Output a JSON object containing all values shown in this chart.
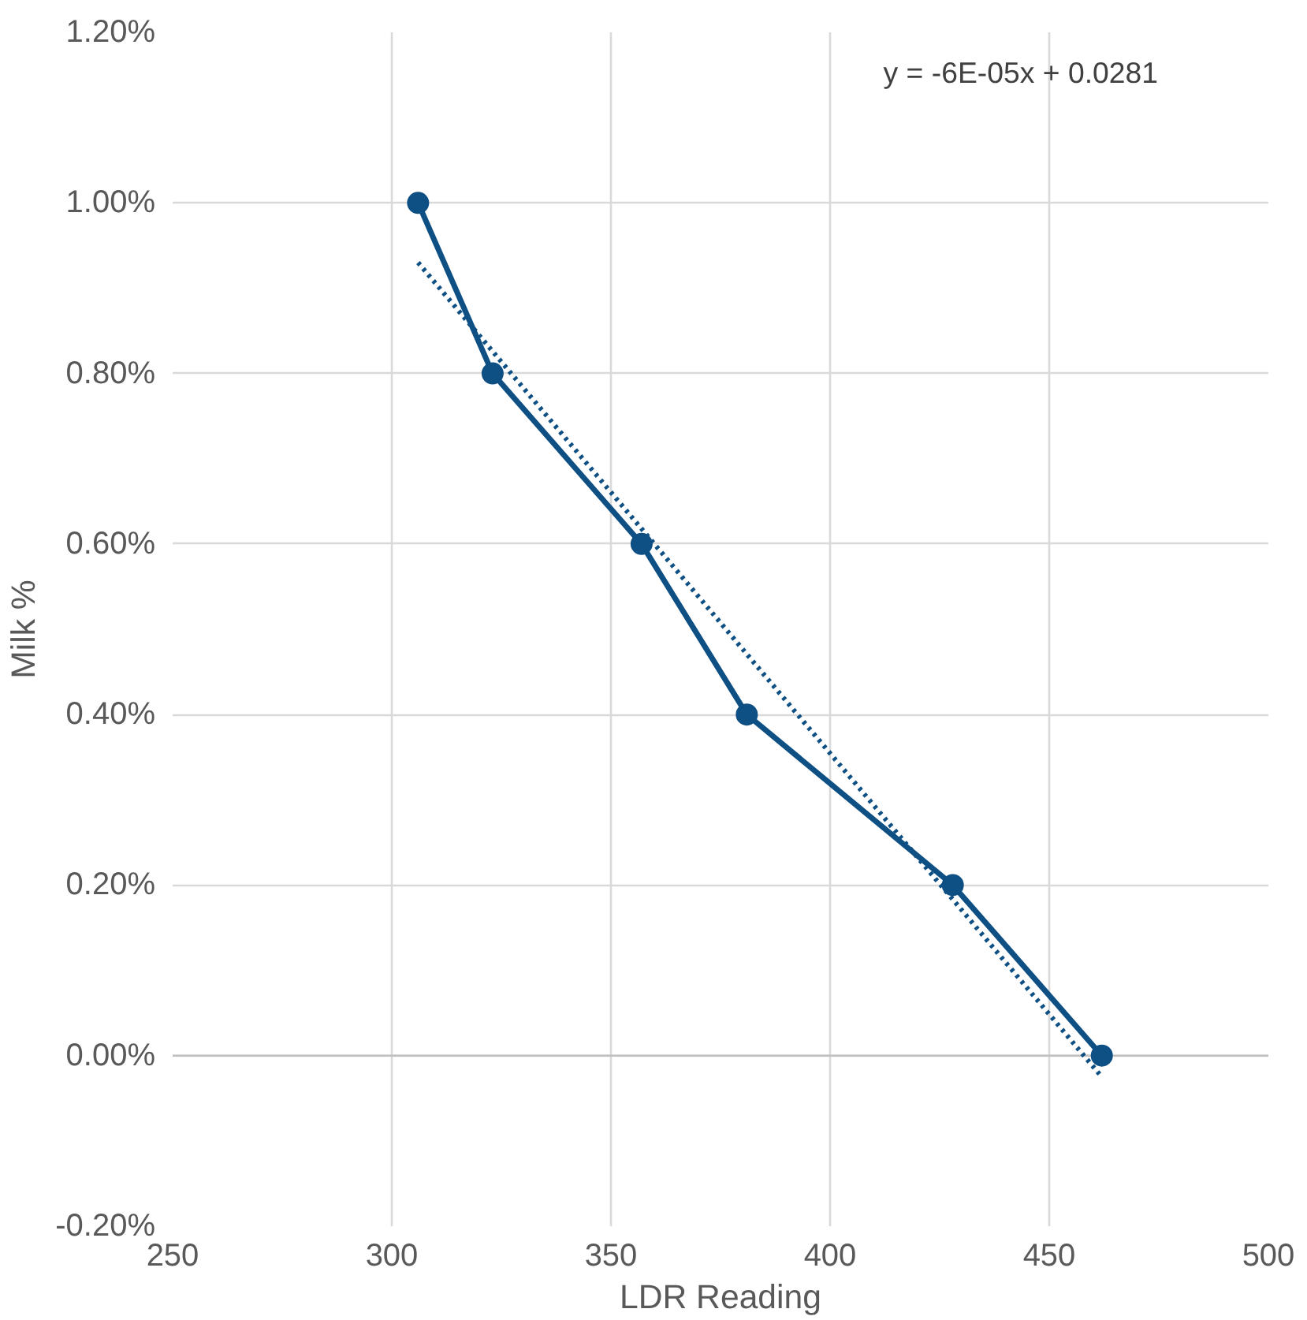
{
  "chart_data": {
    "type": "line",
    "xlabel": "LDR Reading",
    "ylabel": "Milk %",
    "xlim": [
      250,
      500
    ],
    "xticks": [
      250,
      300,
      350,
      400,
      450,
      500
    ],
    "ylim": [
      -0.2,
      1.2
    ],
    "yticks": [
      {
        "value": -0.2,
        "label": "-0.20%"
      },
      {
        "value": 0,
        "label": "0.00%"
      },
      {
        "value": 0.2,
        "label": "0.20%"
      },
      {
        "value": 0.4,
        "label": "0.40%"
      },
      {
        "value": 0.6,
        "label": "0.60%"
      },
      {
        "value": 0.8,
        "label": "0.80%"
      },
      {
        "value": 1.0,
        "label": "1.00%"
      },
      {
        "value": 1.2,
        "label": "1.20%"
      }
    ],
    "grid": true,
    "marker": "circle",
    "line_style": "solid",
    "series": [
      {
        "x": [
          306,
          323,
          357,
          381,
          428,
          462
        ],
        "values": [
          1.0,
          0.8,
          0.6,
          0.4,
          0.2,
          0.0
        ],
        "color": "#0e4f84"
      },
      {
        "type": "line",
        "x": [
          306,
          462
        ],
        "values": [
          0.93,
          -0.025
        ],
        "color": "#0e4f84",
        "marker": "none",
        "line_style": "dotted"
      }
    ],
    "annotations": [
      "y = -6E-05x + 0.0281"
    ]
  }
}
